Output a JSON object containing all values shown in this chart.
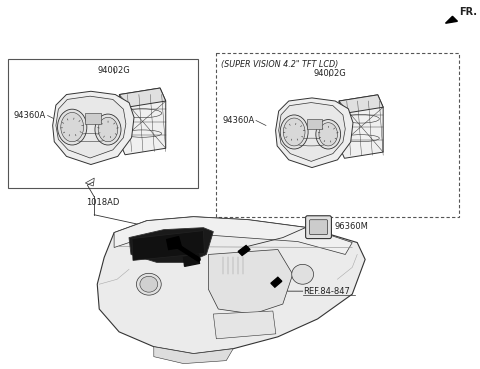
{
  "bg_color": "#ffffff",
  "line_color": "#333333",
  "text_color": "#222222",
  "fr_label": "FR.",
  "labels": {
    "left_part": "94002G",
    "left_sub": "94360A",
    "left_bottom": "1018AD",
    "box_title": "(SUPER VISION 4.2\" TFT LCD)",
    "right_part": "94002G",
    "right_sub": "94360A",
    "sensor": "96360M",
    "ref": "REF.84-847"
  }
}
